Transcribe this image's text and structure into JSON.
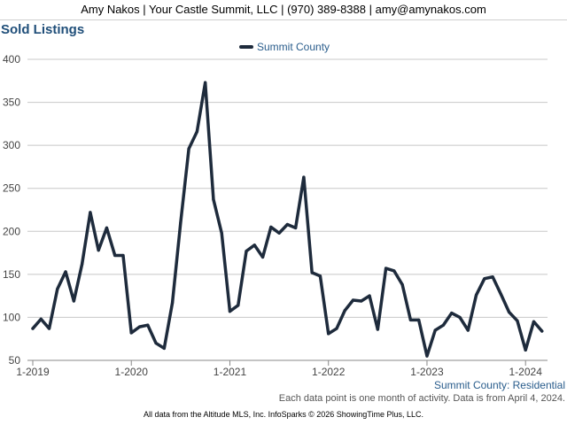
{
  "header": {
    "contact": "Amy Nakos | Your Castle Summit, LLC | (970) 389-8388 | amy@amynakos.com"
  },
  "chart_data": {
    "type": "line",
    "title": "Sold Listings",
    "subtitle": "Summit County: Residential",
    "note": "Each data point is one month of activity. Data is from April 4, 2024.",
    "footer": "All data from the Altitude MLS, Inc. InfoSparks © 2026 ShowingTime Plus, LLC.",
    "ylim": [
      50,
      400
    ],
    "y_ticks": [
      50,
      100,
      150,
      200,
      250,
      300,
      350,
      400
    ],
    "x_tick_labels": [
      "1-2019",
      "1-2020",
      "1-2021",
      "1-2022",
      "1-2023",
      "1-2024"
    ],
    "x": [
      "2019-01",
      "2019-02",
      "2019-03",
      "2019-04",
      "2019-05",
      "2019-06",
      "2019-07",
      "2019-08",
      "2019-09",
      "2019-10",
      "2019-11",
      "2019-12",
      "2020-01",
      "2020-02",
      "2020-03",
      "2020-04",
      "2020-05",
      "2020-06",
      "2020-07",
      "2020-08",
      "2020-09",
      "2020-10",
      "2020-11",
      "2020-12",
      "2021-01",
      "2021-02",
      "2021-03",
      "2021-04",
      "2021-05",
      "2021-06",
      "2021-07",
      "2021-08",
      "2021-09",
      "2021-10",
      "2021-11",
      "2021-12",
      "2022-01",
      "2022-02",
      "2022-03",
      "2022-04",
      "2022-05",
      "2022-06",
      "2022-07",
      "2022-08",
      "2022-09",
      "2022-10",
      "2022-11",
      "2022-12",
      "2023-01",
      "2023-02",
      "2023-03",
      "2023-04",
      "2023-05",
      "2023-06",
      "2023-07",
      "2023-08",
      "2023-09",
      "2023-10",
      "2023-11",
      "2023-12",
      "2024-01",
      "2024-02",
      "2024-03"
    ],
    "legend_position": "top-center",
    "grid": true,
    "series": [
      {
        "name": "Summit County",
        "color": "#1e2b3c",
        "values": [
          87,
          98,
          87,
          133,
          153,
          119,
          162,
          222,
          178,
          204,
          172,
          172,
          82,
          89,
          91,
          70,
          64,
          117,
          210,
          296,
          316,
          373,
          237,
          198,
          107,
          114,
          177,
          184,
          170,
          205,
          198,
          208,
          204,
          263,
          152,
          148,
          81,
          87,
          108,
          120,
          119,
          125,
          86,
          157,
          154,
          138,
          97,
          97,
          55,
          85,
          91,
          105,
          100,
          85,
          126,
          145,
          147,
          127,
          106,
          96,
          62,
          95,
          84
        ]
      }
    ]
  }
}
